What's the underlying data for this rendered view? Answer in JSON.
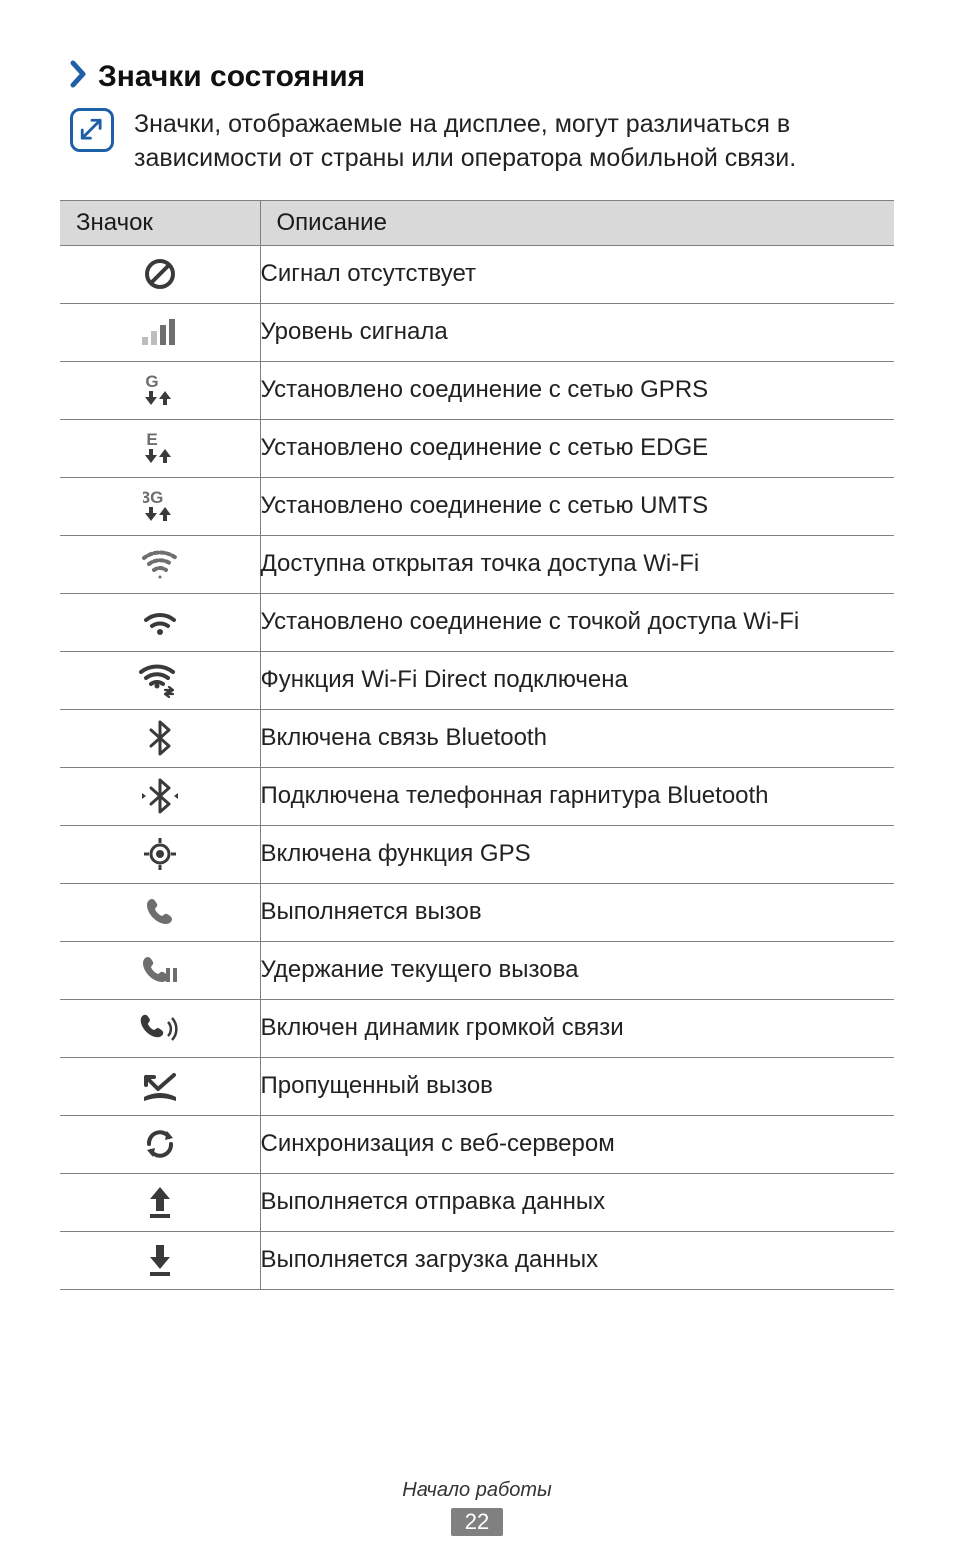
{
  "colors": {
    "accent": "#1f5fa8",
    "border": "#808080",
    "header_bg": "#d9d9d9",
    "text": "#1a1a1a",
    "bg": "#ffffff",
    "icon_gray": "#6e6e6e",
    "icon_light": "#bdbdbd",
    "icon_dark": "#3a3a3a",
    "page_num_bg": "#808080"
  },
  "heading": "Значки состояния",
  "note": "Значки, отображаемые на дисплее, могут различаться в зависимости от страны или оператора мобильной связи.",
  "table": {
    "columns": [
      "Значок",
      "Описание"
    ],
    "rows": [
      {
        "icon": "no-signal",
        "desc": "Сигнал отсутствует"
      },
      {
        "icon": "signal-level",
        "desc": "Уровень сигнала"
      },
      {
        "icon": "gprs",
        "desc": "Установлено соединение с сетью GPRS"
      },
      {
        "icon": "edge",
        "desc": "Установлено соединение с сетью EDGE"
      },
      {
        "icon": "umts",
        "desc": "Установлено соединение с сетью UMTS"
      },
      {
        "icon": "wifi-open",
        "desc": "Доступна открытая точка доступа Wi-Fi"
      },
      {
        "icon": "wifi-connected",
        "desc": "Установлено соединение с точкой доступа Wi-Fi"
      },
      {
        "icon": "wifi-direct",
        "desc": "Функция Wi-Fi Direct подключена"
      },
      {
        "icon": "bluetooth",
        "desc": "Включена связь Bluetooth"
      },
      {
        "icon": "bluetooth-headset",
        "desc": "Подключена телефонная гарнитура Bluetooth"
      },
      {
        "icon": "gps",
        "desc": "Включена функция GPS"
      },
      {
        "icon": "call-active",
        "desc": "Выполняется вызов"
      },
      {
        "icon": "call-hold",
        "desc": "Удержание текущего вызова"
      },
      {
        "icon": "call-speaker",
        "desc": "Включен динамик громкой связи"
      },
      {
        "icon": "call-missed",
        "desc": "Пропущенный вызов"
      },
      {
        "icon": "sync",
        "desc": "Синхронизация с веб-сервером"
      },
      {
        "icon": "upload",
        "desc": "Выполняется отправка данных"
      },
      {
        "icon": "download",
        "desc": "Выполняется загрузка данных"
      }
    ]
  },
  "footer": {
    "section": "Начало работы",
    "page": "22"
  },
  "icon_labels": {
    "G": "G",
    "E": "E",
    "3G": "3G"
  }
}
